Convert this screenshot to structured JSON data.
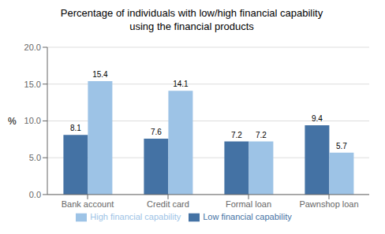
{
  "chart_data": {
    "type": "bar",
    "title": "Percentage of individuals with low/high financial capability\nusing the financial products",
    "ylabel": "%",
    "categories": [
      "Bank account",
      "Credit card",
      "Formal loan",
      "Pawnshop loan"
    ],
    "series": [
      {
        "name": "Low financial capability",
        "color": "#4472A4",
        "values": [
          8.1,
          7.6,
          7.2,
          9.4
        ]
      },
      {
        "name": "High financial capability",
        "color": "#9DC3E6",
        "values": [
          15.4,
          14.1,
          7.2,
          5.7
        ]
      }
    ],
    "ylim": [
      0,
      20.0
    ],
    "yticks": [
      {
        "value": 0,
        "label": "0.0"
      },
      {
        "value": 5,
        "label": "5.0"
      },
      {
        "value": 10,
        "label": "10.0"
      },
      {
        "value": 15,
        "label": "15.0"
      },
      {
        "value": 20,
        "label": "20.0"
      }
    ],
    "grid": true,
    "legend": "bottom",
    "data_labels": true
  }
}
